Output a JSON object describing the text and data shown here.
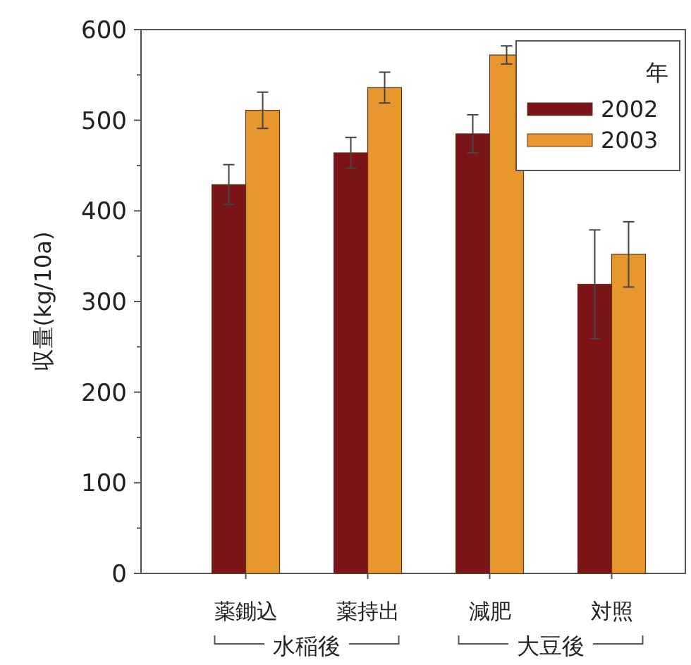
{
  "chart_data": {
    "type": "bar",
    "ylabel": "収量(kg/10a)",
    "legend_title": "年",
    "categories": [
      "薬鋤込",
      "薬持出",
      "減肥",
      "対照"
    ],
    "series": [
      {
        "name": "2002",
        "color": "#7a1416",
        "values": [
          429,
          464,
          485,
          319
        ],
        "errors": [
          22,
          17,
          21,
          60
        ]
      },
      {
        "name": "2003",
        "color": "#e8962e",
        "values": [
          511,
          536,
          572,
          352
        ],
        "errors": [
          20,
          17,
          10,
          36
        ]
      }
    ],
    "ylim": [
      0,
      600
    ],
    "yticks": [
      0,
      {
        "value": 50,
        "label": null
      },
      100,
      {
        "value": 150,
        "label": null
      },
      200,
      {
        "value": 250,
        "label": null
      },
      300,
      {
        "value": 350,
        "label": null
      },
      400,
      {
        "value": 450,
        "label": null
      },
      500,
      {
        "value": 550,
        "label": null
      },
      600
    ],
    "annotations": [
      "水稲後",
      "大豆後"
    ],
    "legend": "top right",
    "grid": false
  }
}
